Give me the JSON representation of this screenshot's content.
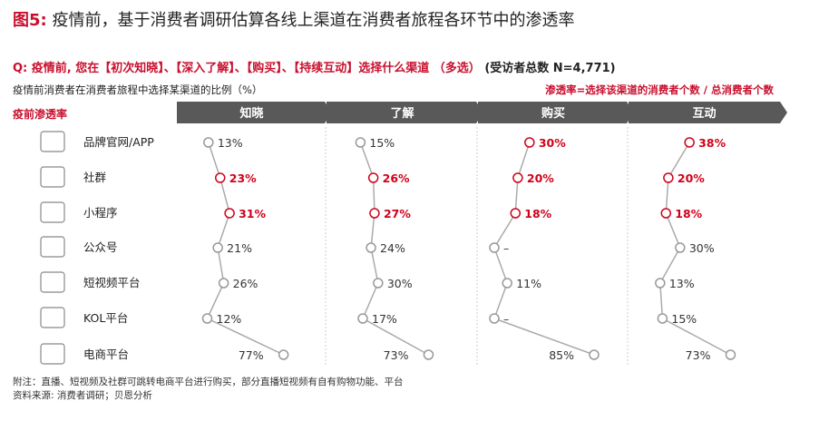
{
  "header": {
    "fig_label": "图5:",
    "title": "疫情前，基于消费者调研估算各线上渠道在消费者旅程各环节中的渗透率",
    "question": "Q: 疫情前, 您在【初次知晓】、【深入了解】、【购买】、【持续互动】选择什么渠道 （多选）",
    "question_tail": "(受访者总数 N=4,771)",
    "subtitle": "疫情前消费者在消费者旅程中选择某渠道的比例（%）",
    "definition": "渗透率=选择该渠道的消费者个数 / 总消费者个数",
    "row_header": "疫前渗透率"
  },
  "footer": {
    "note": "附注：直播、短视频及社群可跳转电商平台进行购买，部分直播短视频有自有购物功能、平台",
    "source": "资料来源: 消费者调研；贝恩分析"
  },
  "colors": {
    "highlight": "#d0021b",
    "normal_text": "#333333",
    "marker_gray": "#999999",
    "line": "#aaaaaa",
    "stage_bar": "#595959"
  },
  "chart_data": {
    "type": "line",
    "categories": [
      "品牌官网/APP",
      "社群",
      "小程序",
      "公众号",
      "短视频平台",
      "KOL平台",
      "电商平台"
    ],
    "icons": [
      "website-icon",
      "community-icon",
      "mini-program-icon",
      "official-account-icon",
      "short-video-icon",
      "kol-icon",
      "ecommerce-icon"
    ],
    "series": [
      {
        "name": "知晓",
        "values": [
          13,
          23,
          31,
          21,
          26,
          12,
          77
        ],
        "labels": [
          "13%",
          "23%",
          "31%",
          "21%",
          "26%",
          "12%",
          "77%"
        ],
        "highlight": [
          false,
          true,
          true,
          false,
          false,
          false,
          false
        ]
      },
      {
        "name": "了解",
        "values": [
          15,
          26,
          27,
          24,
          30,
          17,
          73
        ],
        "labels": [
          "15%",
          "26%",
          "27%",
          "24%",
          "30%",
          "17%",
          "73%"
        ],
        "highlight": [
          false,
          true,
          true,
          false,
          false,
          false,
          false
        ]
      },
      {
        "name": "购买",
        "values": [
          30,
          20,
          18,
          null,
          11,
          null,
          85
        ],
        "labels": [
          "30%",
          "20%",
          "18%",
          "–",
          "11%",
          "–",
          "85%"
        ],
        "highlight": [
          true,
          true,
          true,
          false,
          false,
          false,
          false
        ]
      },
      {
        "name": "互动",
        "values": [
          38,
          20,
          18,
          30,
          13,
          15,
          73
        ],
        "labels": [
          "38%",
          "20%",
          "18%",
          "30%",
          "13%",
          "15%",
          "73%"
        ],
        "highlight": [
          true,
          true,
          true,
          false,
          false,
          false,
          false
        ]
      }
    ]
  }
}
